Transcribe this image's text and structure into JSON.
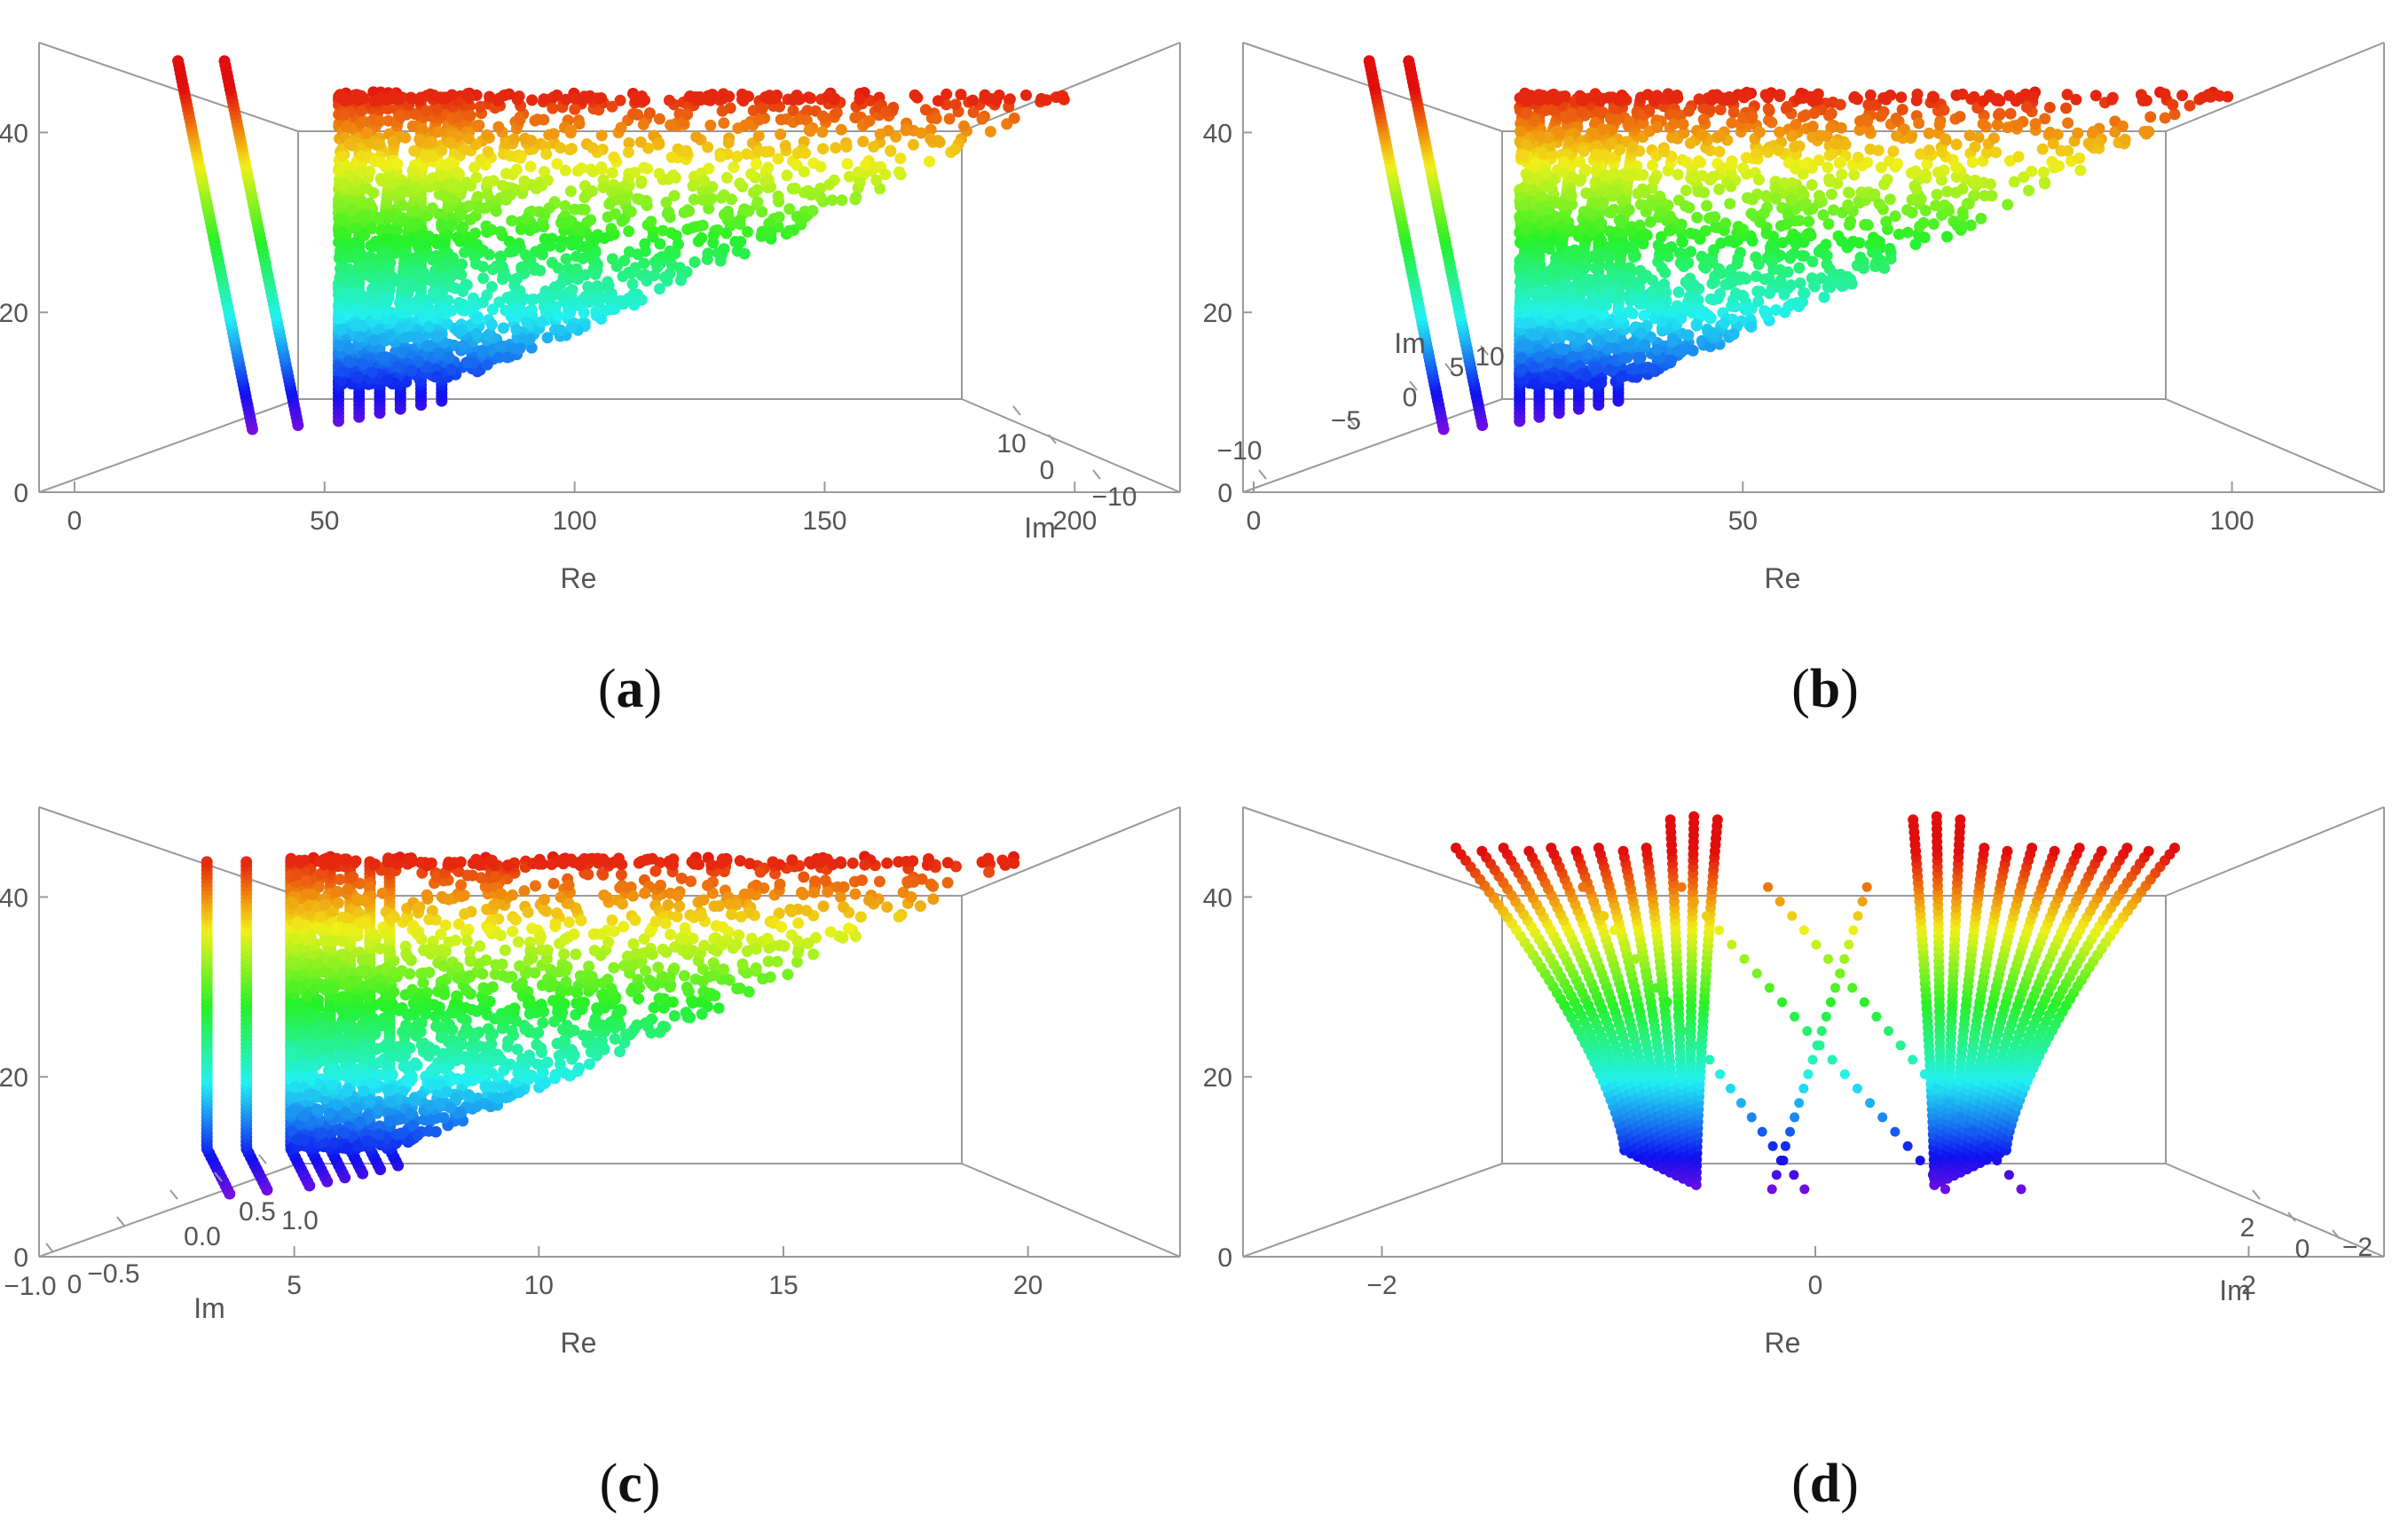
{
  "figure": {
    "captions": [
      {
        "open": "(",
        "letter": "a",
        "close": ")"
      },
      {
        "open": "(",
        "letter": "b",
        "close": ")"
      },
      {
        "open": "(",
        "letter": "c",
        "close": ")"
      },
      {
        "open": "(",
        "letter": "d",
        "close": ")"
      }
    ]
  },
  "chart_data": [
    {
      "type": "scatter",
      "panel": "a",
      "title": "",
      "xlabel": "Re",
      "ylabel_depth": "Im",
      "x_ticks": [
        "0",
        "50",
        "100",
        "150",
        "200"
      ],
      "z_ticks": [
        "0",
        "20",
        "40"
      ],
      "depth_ticks": [
        "10",
        "0",
        "−10"
      ],
      "xlim": [
        0,
        220
      ],
      "zlim": [
        0,
        50
      ],
      "colormap": "rainbow (violet at low height, red at high height)",
      "description": "Points form nearly vertical strands rising from about height 7-12 near Re 30-90; above height ~20 they spread into a wedge reaching Re ~200 at height ~44."
    },
    {
      "type": "scatter",
      "panel": "b",
      "title": "",
      "xlabel": "Re",
      "ylabel_depth": "Im",
      "x_ticks": [
        "0",
        "50",
        "100"
      ],
      "z_ticks": [
        "0",
        "20",
        "40"
      ],
      "depth_ticks": [
        "−10",
        "−5",
        "0",
        "5",
        "10"
      ],
      "xlim": [
        0,
        115
      ],
      "zlim": [
        0,
        50
      ],
      "colormap": "rainbow (violet at low height, red at high height)",
      "description": "Same structure as (a) with Re compressed to roughly 0-100."
    },
    {
      "type": "scatter",
      "panel": "c",
      "title": "",
      "xlabel": "Re",
      "ylabel_depth": "Im",
      "x_ticks": [
        "5",
        "10",
        "15",
        "20"
      ],
      "z_ticks": [
        "0",
        "20",
        "40"
      ],
      "depth_ticks": [
        "−1.0",
        "−0.5",
        "0.0",
        "0.5",
        "1.0"
      ],
      "depth_origin_label": "0",
      "xlim": [
        0,
        23
      ],
      "zlim": [
        0,
        50
      ],
      "colormap": "rainbow (violet at low height, red at high height)",
      "description": "Vertical strands near Re 3-6 hooking at the bottom, with a dense wedge extending to Re ~20 at height ~44."
    },
    {
      "type": "scatter",
      "panel": "d",
      "title": "",
      "xlabel": "Re",
      "ylabel_depth": "Im",
      "x_ticks": [
        "−2",
        "0",
        "2"
      ],
      "z_ticks": [
        "0",
        "20",
        "40"
      ],
      "depth_ticks": [
        "2",
        "0",
        "−2"
      ],
      "xlim": [
        -2.6,
        2.6
      ],
      "zlim": [
        0,
        50
      ],
      "colormap": "rainbow (violet at low height, red at high height)",
      "description": "Symmetric U-shaped family of curves: strands fan outward to Re ≈ ±1.7 near height 45 and converge toward Re ≈ ±0.8 near height 8, with diagonal point chains crossing the middle."
    }
  ]
}
